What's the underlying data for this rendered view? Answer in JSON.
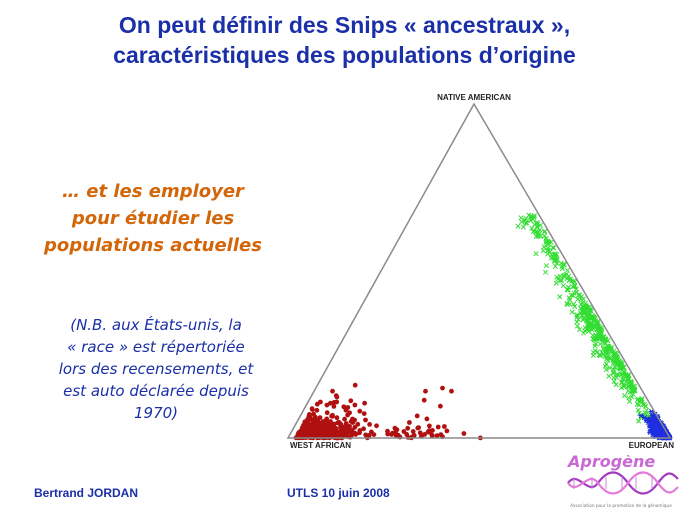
{
  "title": {
    "line1": "On peut définir des Snips « ancestraux »,",
    "line2": "caractéristiques des populations d’origine"
  },
  "subtitle": {
    "line1": "… et les employer",
    "line2": "pour étudier les",
    "line3": "populations actuelles"
  },
  "note": {
    "line1": "(N.B. aux États-unis, la",
    "line2": "« race » est répertoriée",
    "line3": "lors des recensements, et",
    "line4": "est auto déclarée depuis",
    "line5": "1970)"
  },
  "footer": {
    "author": "Bertrand JORDAN",
    "event": "UTLS 10 juin 2008"
  },
  "logo": {
    "text": "Aprogène",
    "tagline": "Association pour la promotion de la génomique"
  },
  "chart_data": {
    "type": "scatter",
    "subtype": "ternary",
    "vertex_labels": {
      "top": "NATIVE AMERICAN",
      "bottom_left": "WEST AFRICAN",
      "bottom_right": "EUROPEAN"
    },
    "series": [
      {
        "color": "#b01010",
        "marker": "circle",
        "cluster": "near WEST AFRICAN vertex, spread along base toward EUROPEAN",
        "approx_points": 600
      },
      {
        "color": "#33dd33",
        "marker": "x",
        "cluster": "along right edge between NATIVE AMERICAN and EUROPEAN",
        "approx_points": 450
      },
      {
        "color": "#1f2fe0",
        "marker": "asterisk",
        "cluster": "concentrated at EUROPEAN vertex",
        "approx_points": 300
      }
    ]
  }
}
